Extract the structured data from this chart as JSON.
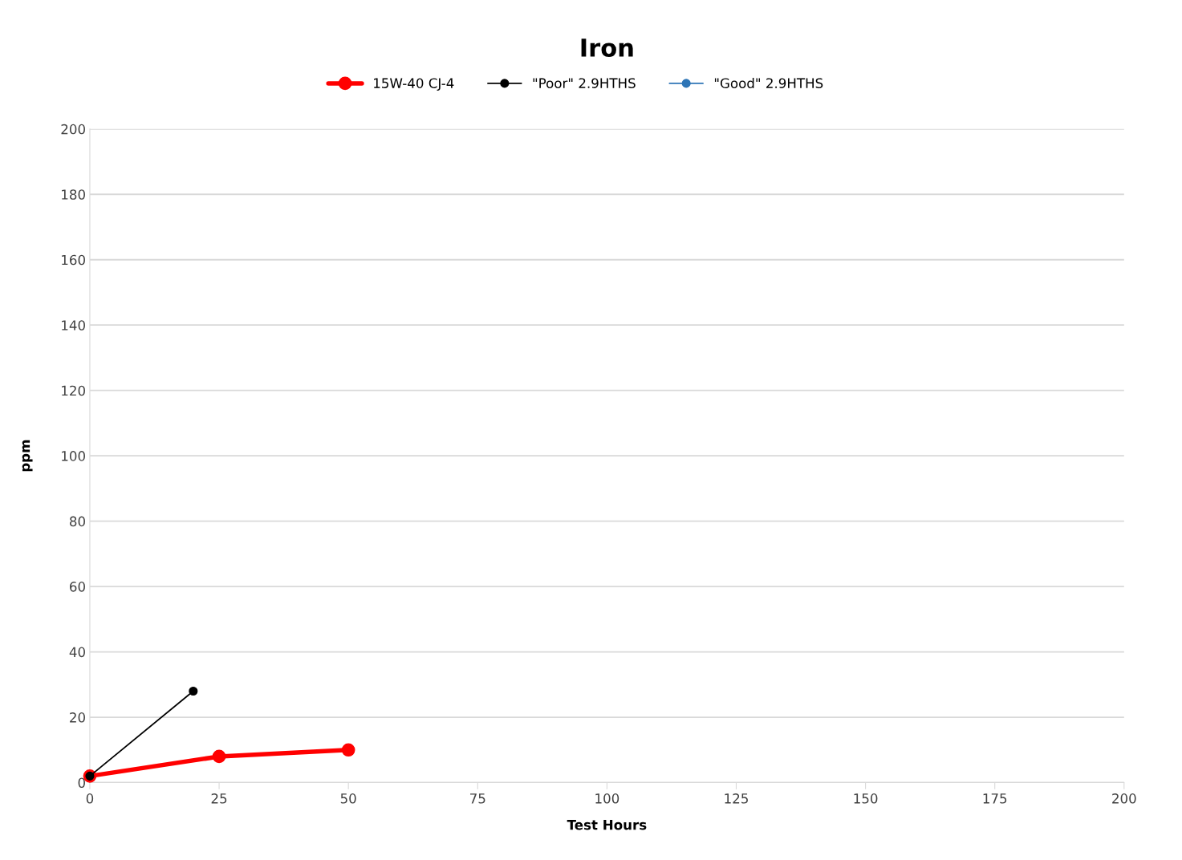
{
  "chart_data": {
    "type": "line",
    "title": "Iron",
    "xlabel": "Test Hours",
    "ylabel": "ppm",
    "series": [
      {
        "name": "15W-40 CJ-4",
        "color": "#ff0000",
        "x": [
          0,
          25,
          50
        ],
        "values": [
          2,
          8,
          10
        ]
      },
      {
        "name": "\"Poor\" 2.9HTHS",
        "color": "#000000",
        "x": [
          0,
          20
        ],
        "values": [
          2,
          28
        ]
      },
      {
        "name": "\"Good\" 2.9HTHS",
        "color": "#2e75b6"
      }
    ],
    "xlim": [
      0,
      200
    ],
    "xticks": [
      0,
      25,
      50,
      75,
      100,
      125,
      150,
      175,
      200
    ],
    "ylim": [
      0,
      200
    ],
    "yticks": [
      0,
      20,
      40,
      60,
      80,
      100,
      120,
      140,
      160,
      180,
      200
    ],
    "grid": "y",
    "legend": "top",
    "marker": "circle",
    "line_style": "solid"
  }
}
